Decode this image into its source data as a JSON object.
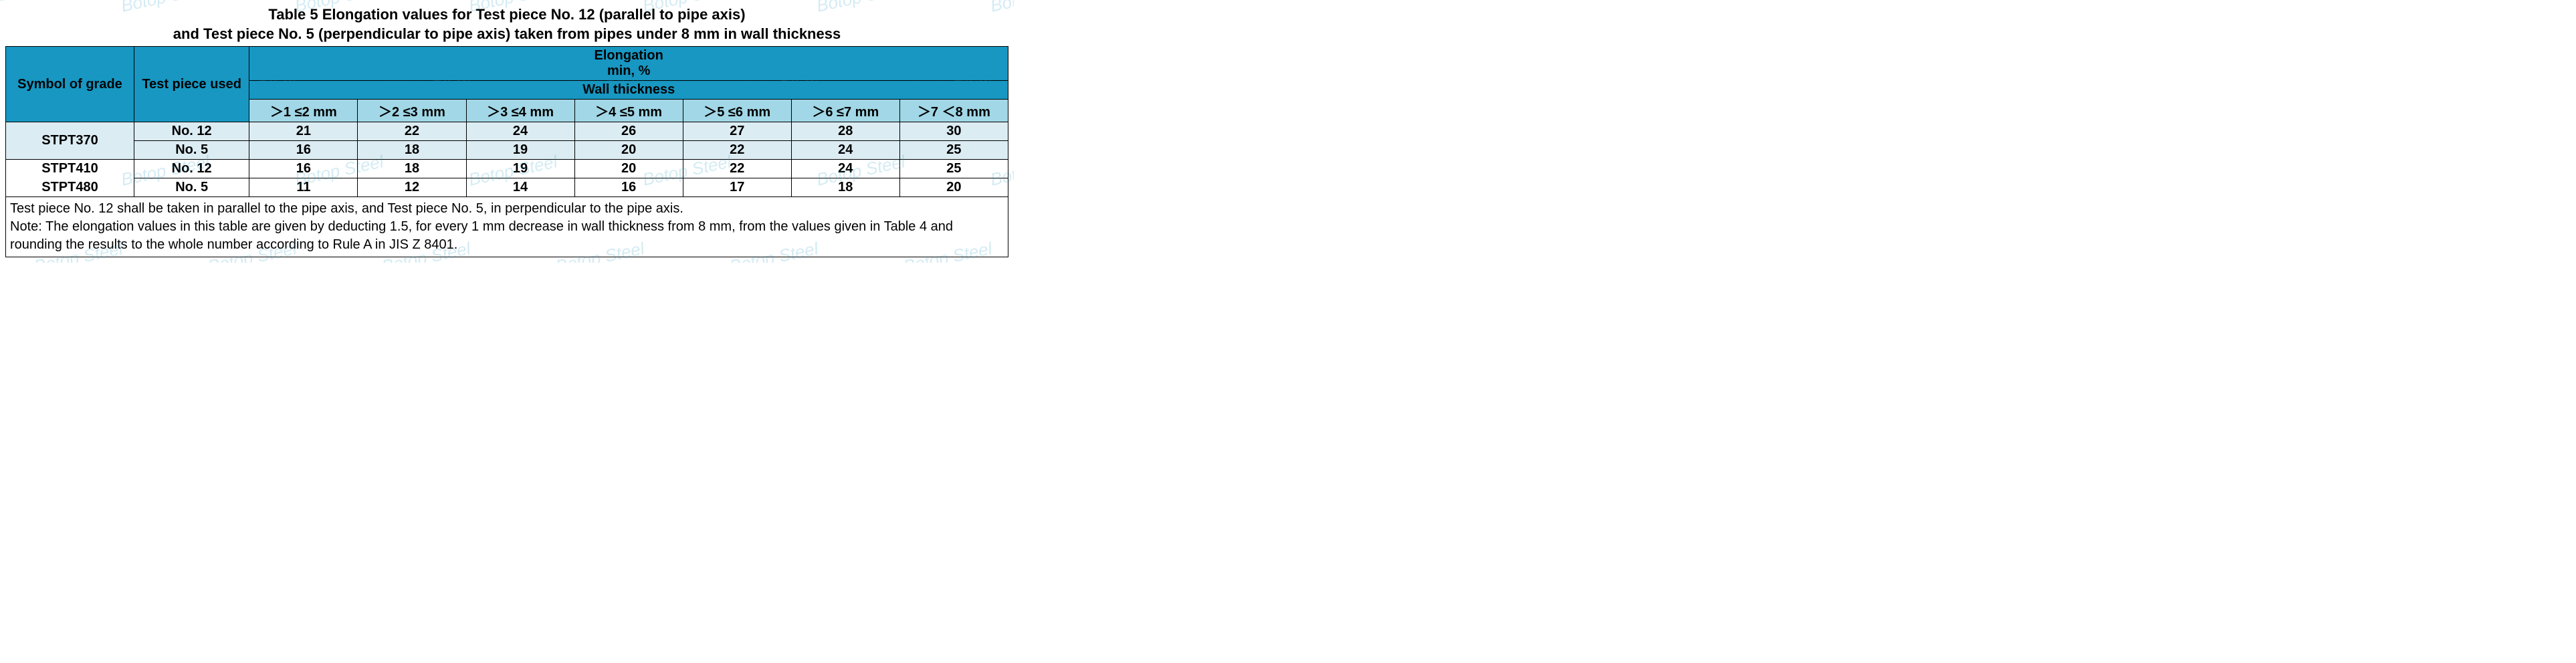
{
  "colors": {
    "header_dark": "#1797c2",
    "header_light": "#a1d7e6",
    "row_light": "#dcecf3",
    "row_plain": "#ffffff",
    "border": "#000000",
    "watermark": "#1797c2"
  },
  "watermark_text": "Botop Steel",
  "title_line1": "Table 5 Elongation values for Test piece No. 12 (parallel to pipe axis)",
  "title_line2": "and Test piece No. 5 (perpendicular to pipe axis) taken from pipes under 8 mm in wall thickness",
  "headers": {
    "symbol": "Symbol of grade",
    "test_piece": "Test piece used",
    "elong_line1": "Elongation",
    "elong_line2": "min, %",
    "wall_thickness": "Wall thickness",
    "ranges": [
      "＞1 ≤2 mm",
      "＞2 ≤3 mm",
      "＞3 ≤4 mm",
      "＞4 ≤5 mm",
      "＞5 ≤6 mm",
      "＞6 ≤7 mm",
      "＞7 ＜8 mm"
    ]
  },
  "rows": [
    {
      "grade": "STPT370",
      "piece": "No. 12",
      "vals": [
        "21",
        "22",
        "24",
        "26",
        "27",
        "28",
        "30"
      ],
      "shade": "light"
    },
    {
      "grade": "",
      "piece": "No. 5",
      "vals": [
        "16",
        "18",
        "19",
        "20",
        "22",
        "24",
        "25"
      ],
      "shade": "light"
    },
    {
      "grade": "STPT410",
      "piece": "No. 12",
      "vals": [
        "16",
        "18",
        "19",
        "20",
        "22",
        "24",
        "25"
      ],
      "shade": "plain"
    },
    {
      "grade": "STPT480",
      "piece": "No. 5",
      "vals": [
        "11",
        "12",
        "14",
        "16",
        "17",
        "18",
        "20"
      ],
      "shade": "plain"
    }
  ],
  "footnote_line1": "Test piece No. 12 shall be taken in parallel to the pipe axis, and Test piece No. 5, in perpendicular to the pipe axis.",
  "footnote_line2": "Note: The elongation values in this table are given by deducting 1.5, for every 1 mm decrease in wall thickness from 8 mm, from the values given in Table 4 and rounding the results to the whole number according to Rule A in JIS Z 8401."
}
